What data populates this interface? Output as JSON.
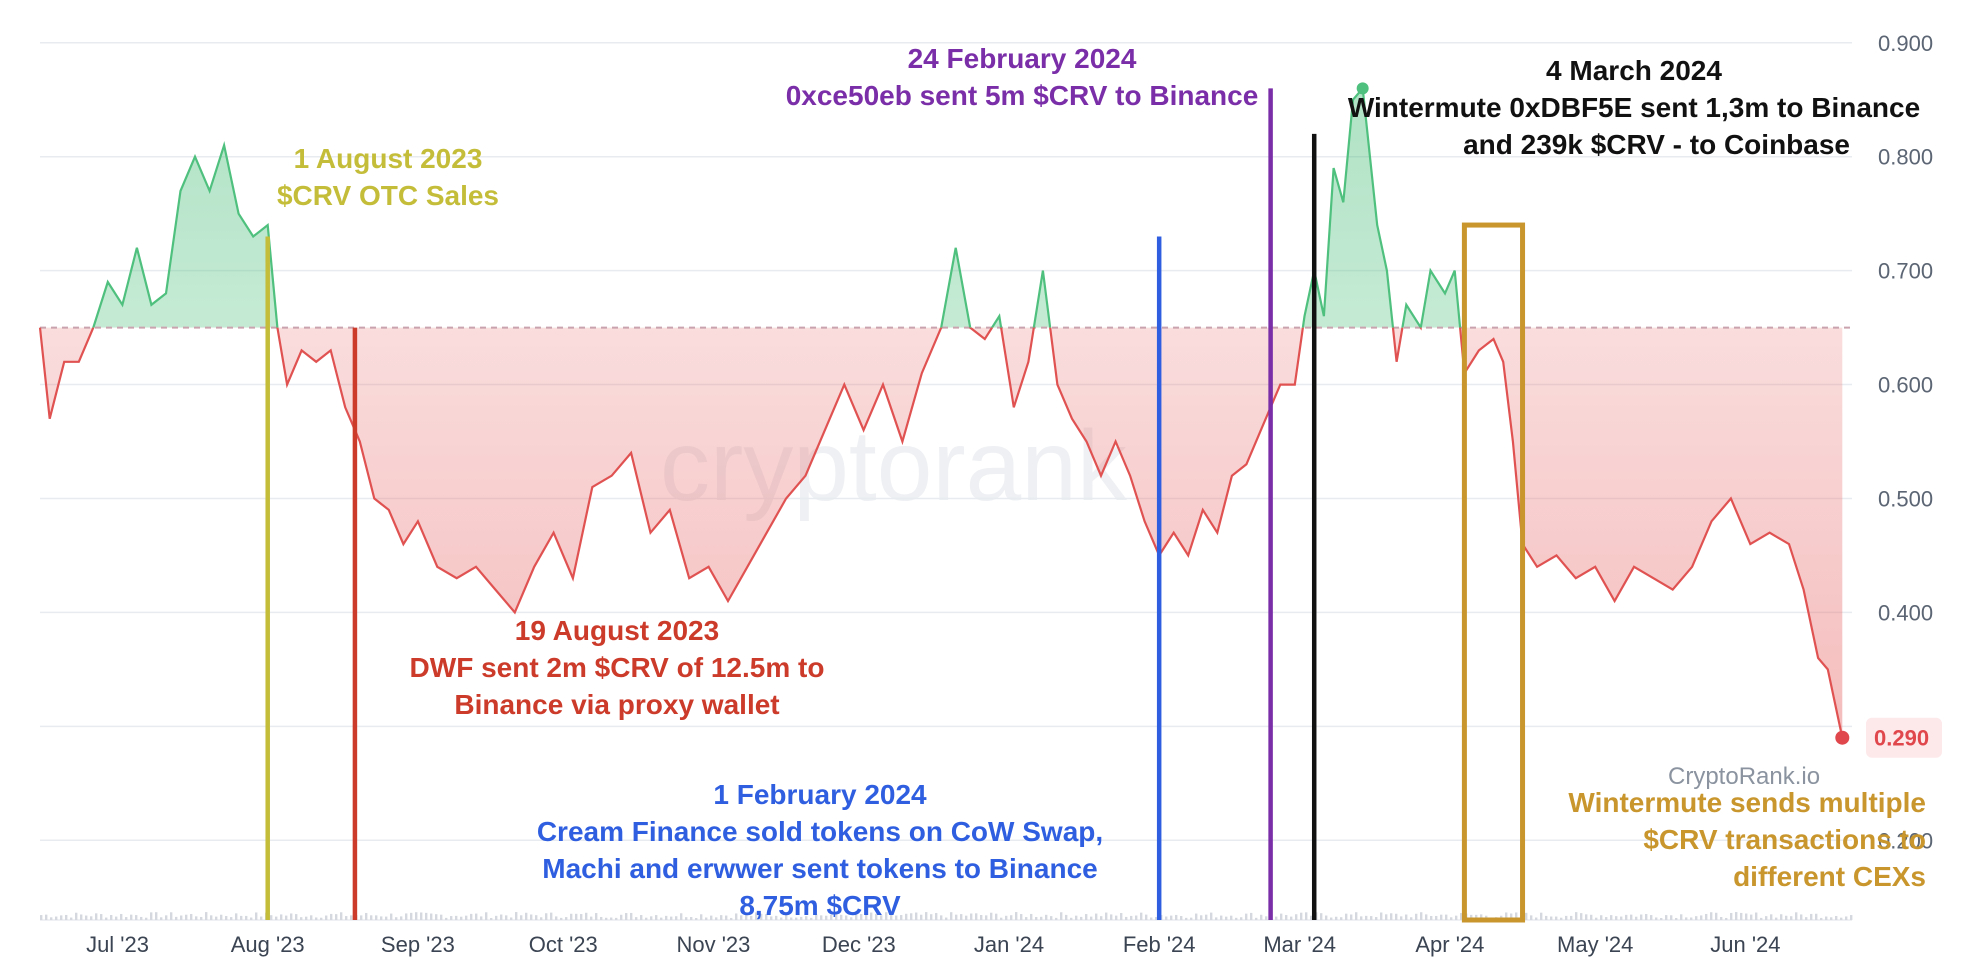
{
  "chart_data": {
    "type": "area",
    "baseline": 0.65,
    "ylim": [
      0.13,
      0.92
    ],
    "y_ticks": [
      "0.900",
      "0.800",
      "0.700",
      "0.600",
      "0.500",
      "0.400",
      "0.200"
    ],
    "y_tick_values": [
      0.9,
      0.8,
      0.7,
      0.6,
      0.5,
      0.4,
      0.2
    ],
    "x_ticks": [
      "Jul '23",
      "Aug '23",
      "Sep '23",
      "Oct '23",
      "Nov '23",
      "Dec '23",
      "Jan '24",
      "Feb '24",
      "Mar '24",
      "Apr '24",
      "May '24",
      "Jun '24"
    ],
    "x_tick_dates": [
      "2023-07-01",
      "2023-08-01",
      "2023-09-01",
      "2023-10-01",
      "2023-11-01",
      "2023-12-01",
      "2024-01-01",
      "2024-02-01",
      "2024-03-01",
      "2024-04-01",
      "2024-05-01",
      "2024-06-01"
    ],
    "xlim": [
      "2023-06-15",
      "2024-06-23"
    ],
    "last_value": "0.290",
    "colors": {
      "above": "#4fc07e",
      "below": "#e05252",
      "above_fill": "#4fc07e",
      "below_fill": "#e86a6a",
      "baseline": "#c9a3ad",
      "grid": "#e8ebef",
      "last_badge_bg": "#fde8ea",
      "last_badge_text": "#e0474c"
    },
    "series": [
      {
        "points": [
          [
            "2023-06-15",
            0.65
          ],
          [
            "2023-06-17",
            0.57
          ],
          [
            "2023-06-20",
            0.62
          ],
          [
            "2023-06-23",
            0.62
          ],
          [
            "2023-06-26",
            0.65
          ],
          [
            "2023-06-29",
            0.69
          ],
          [
            "2023-07-02",
            0.67
          ],
          [
            "2023-07-05",
            0.72
          ],
          [
            "2023-07-08",
            0.67
          ],
          [
            "2023-07-11",
            0.68
          ],
          [
            "2023-07-14",
            0.77
          ],
          [
            "2023-07-17",
            0.8
          ],
          [
            "2023-07-20",
            0.77
          ],
          [
            "2023-07-23",
            0.81
          ],
          [
            "2023-07-26",
            0.75
          ],
          [
            "2023-07-29",
            0.73
          ],
          [
            "2023-08-01",
            0.74
          ],
          [
            "2023-08-03",
            0.65
          ],
          [
            "2023-08-05",
            0.6
          ],
          [
            "2023-08-08",
            0.63
          ],
          [
            "2023-08-11",
            0.62
          ],
          [
            "2023-08-14",
            0.63
          ],
          [
            "2023-08-17",
            0.58
          ],
          [
            "2023-08-20",
            0.55
          ],
          [
            "2023-08-23",
            0.5
          ],
          [
            "2023-08-26",
            0.49
          ],
          [
            "2023-08-29",
            0.46
          ],
          [
            "2023-09-01",
            0.48
          ],
          [
            "2023-09-05",
            0.44
          ],
          [
            "2023-09-09",
            0.43
          ],
          [
            "2023-09-13",
            0.44
          ],
          [
            "2023-09-17",
            0.42
          ],
          [
            "2023-09-21",
            0.4
          ],
          [
            "2023-09-25",
            0.44
          ],
          [
            "2023-09-29",
            0.47
          ],
          [
            "2023-10-03",
            0.43
          ],
          [
            "2023-10-07",
            0.51
          ],
          [
            "2023-10-11",
            0.52
          ],
          [
            "2023-10-15",
            0.54
          ],
          [
            "2023-10-19",
            0.47
          ],
          [
            "2023-10-23",
            0.49
          ],
          [
            "2023-10-27",
            0.43
          ],
          [
            "2023-10-31",
            0.44
          ],
          [
            "2023-11-04",
            0.41
          ],
          [
            "2023-11-08",
            0.44
          ],
          [
            "2023-11-12",
            0.47
          ],
          [
            "2023-11-16",
            0.5
          ],
          [
            "2023-11-20",
            0.52
          ],
          [
            "2023-11-24",
            0.56
          ],
          [
            "2023-11-28",
            0.6
          ],
          [
            "2023-12-02",
            0.56
          ],
          [
            "2023-12-06",
            0.6
          ],
          [
            "2023-12-10",
            0.55
          ],
          [
            "2023-12-14",
            0.61
          ],
          [
            "2023-12-18",
            0.65
          ],
          [
            "2023-12-21",
            0.72
          ],
          [
            "2023-12-24",
            0.65
          ],
          [
            "2023-12-27",
            0.64
          ],
          [
            "2023-12-30",
            0.66
          ],
          [
            "2024-01-02",
            0.58
          ],
          [
            "2024-01-05",
            0.62
          ],
          [
            "2024-01-08",
            0.7
          ],
          [
            "2024-01-11",
            0.6
          ],
          [
            "2024-01-14",
            0.57
          ],
          [
            "2024-01-17",
            0.55
          ],
          [
            "2024-01-20",
            0.52
          ],
          [
            "2024-01-23",
            0.55
          ],
          [
            "2024-01-26",
            0.52
          ],
          [
            "2024-01-29",
            0.48
          ],
          [
            "2024-02-01",
            0.45
          ],
          [
            "2024-02-04",
            0.47
          ],
          [
            "2024-02-07",
            0.45
          ],
          [
            "2024-02-10",
            0.49
          ],
          [
            "2024-02-13",
            0.47
          ],
          [
            "2024-02-16",
            0.52
          ],
          [
            "2024-02-19",
            0.53
          ],
          [
            "2024-02-22",
            0.56
          ],
          [
            "2024-02-24",
            0.58
          ],
          [
            "2024-02-26",
            0.6
          ],
          [
            "2024-02-29",
            0.6
          ],
          [
            "2024-03-02",
            0.66
          ],
          [
            "2024-03-04",
            0.7
          ],
          [
            "2024-03-06",
            0.66
          ],
          [
            "2024-03-08",
            0.79
          ],
          [
            "2024-03-10",
            0.76
          ],
          [
            "2024-03-12",
            0.85
          ],
          [
            "2024-03-14",
            0.86
          ],
          [
            "2024-03-17",
            0.74
          ],
          [
            "2024-03-19",
            0.7
          ],
          [
            "2024-03-21",
            0.62
          ],
          [
            "2024-03-23",
            0.67
          ],
          [
            "2024-03-26",
            0.65
          ],
          [
            "2024-03-28",
            0.7
          ],
          [
            "2024-03-31",
            0.68
          ],
          [
            "2024-04-02",
            0.7
          ],
          [
            "2024-04-04",
            0.61
          ],
          [
            "2024-04-07",
            0.63
          ],
          [
            "2024-04-10",
            0.64
          ],
          [
            "2024-04-12",
            0.62
          ],
          [
            "2024-04-14",
            0.55
          ],
          [
            "2024-04-16",
            0.46
          ],
          [
            "2024-04-19",
            0.44
          ],
          [
            "2024-04-23",
            0.45
          ],
          [
            "2024-04-27",
            0.43
          ],
          [
            "2024-05-01",
            0.44
          ],
          [
            "2024-05-05",
            0.41
          ],
          [
            "2024-05-09",
            0.44
          ],
          [
            "2024-05-13",
            0.43
          ],
          [
            "2024-05-17",
            0.42
          ],
          [
            "2024-05-21",
            0.44
          ],
          [
            "2024-05-25",
            0.48
          ],
          [
            "2024-05-29",
            0.5
          ],
          [
            "2024-06-02",
            0.46
          ],
          [
            "2024-06-06",
            0.47
          ],
          [
            "2024-06-10",
            0.46
          ],
          [
            "2024-06-13",
            0.42
          ],
          [
            "2024-06-16",
            0.36
          ],
          [
            "2024-06-18",
            0.35
          ],
          [
            "2024-06-21",
            0.29
          ]
        ]
      }
    ],
    "annotations": [
      {
        "date": "2023-08-01",
        "y_top": 0.73,
        "color": "#c4bd3a",
        "lines": [
          "1 August 2023",
          "$CRV OTC Sales"
        ]
      },
      {
        "date": "2023-08-19",
        "y_top": 0.65,
        "color": "#cc3a2a",
        "lines": [
          "19 August  2023",
          "DWF sent 2m $CRV of 12.5m to",
          "Binance via proxy wallet"
        ]
      },
      {
        "date": "2024-02-01",
        "y_top": 0.73,
        "color": "#2f5fe0",
        "lines": [
          "1 February 2024",
          "Cream Finance sold tokens on CoW Swap,",
          "Machi and erwwer sent tokens to Binance",
          "8,75m $CRV"
        ]
      },
      {
        "date": "2024-02-24",
        "y_top": 0.86,
        "color": "#7a2ea8",
        "lines": [
          "24 February 2024",
          "0xce50eb sent 5m $CRV to Binance"
        ]
      },
      {
        "date": "2024-03-04",
        "y_top": 0.82,
        "color": "#111111",
        "lines": [
          "4 March 2024",
          "Wintermute 0xDBF5E sent 1,3m to Binance",
          "and 239k $CRV - to Coinbase"
        ]
      },
      {
        "range": [
          "2024-04-04",
          "2024-04-16"
        ],
        "y_top": 0.74,
        "color": "#c8962d",
        "lines": [
          "Wintermute sends multiple",
          "$CRV transactions to",
          "different CEXs"
        ]
      }
    ]
  },
  "watermark": "cryptorank",
  "brand": "CryptoRank.io"
}
